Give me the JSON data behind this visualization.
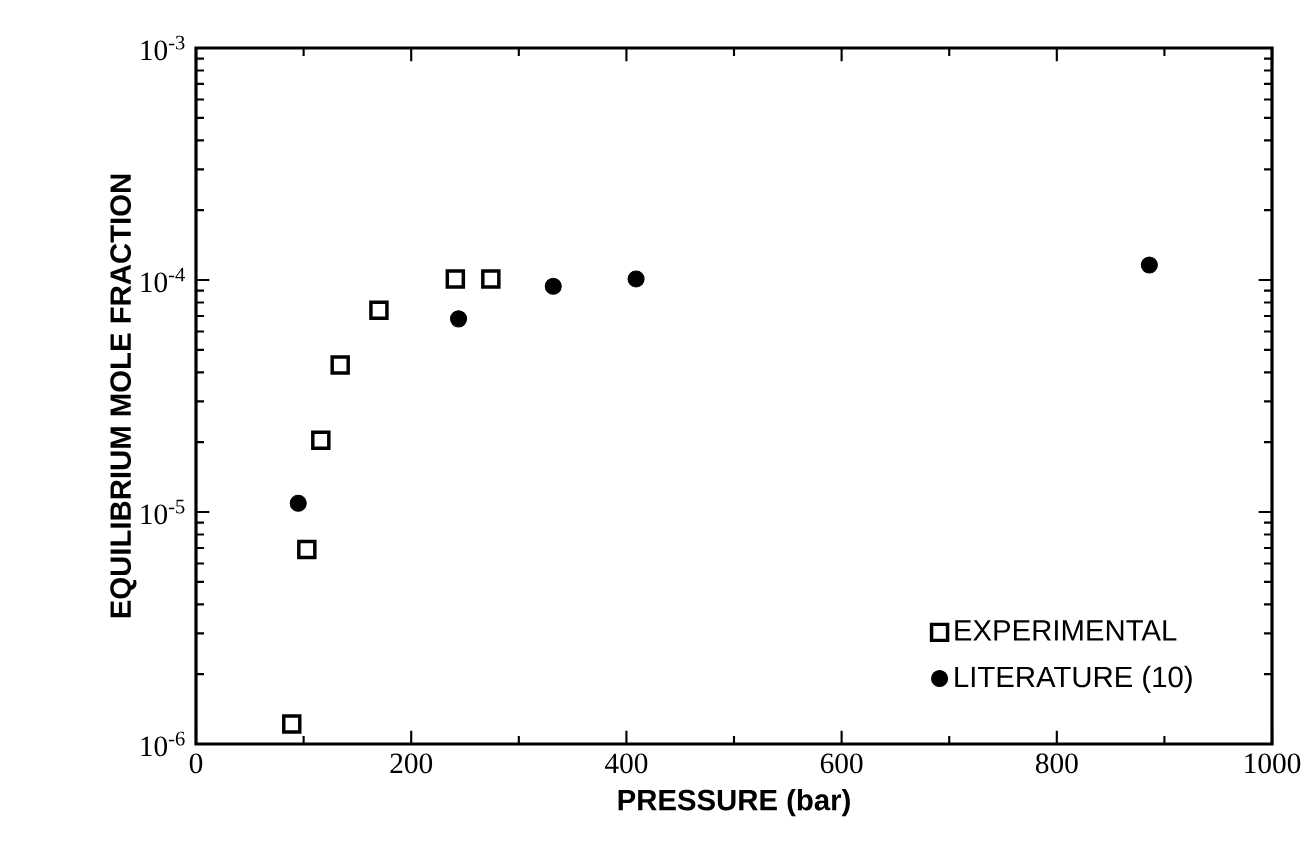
{
  "chart_data": {
    "type": "scatter",
    "xlabel": "PRESSURE  (bar)",
    "ylabel": "EQUILIBRIUM  MOLE  FRACTION",
    "log": "y",
    "xlim": [
      0,
      1000
    ],
    "xticks": [
      0,
      200,
      400,
      600,
      800,
      1000
    ],
    "ylim": [
      1e-06,
      0.001
    ],
    "yticks": [
      {
        "value": 1e-06,
        "label": "10$^{-6}$"
      },
      {
        "value": 1e-05,
        "label": "10$^{-5}$"
      },
      {
        "value": 0.0001,
        "label": "10$^{-4}$"
      },
      {
        "value": 0.001,
        "label": "10$^{-3}$"
      }
    ],
    "legend": "bottom right",
    "grid": false,
    "series": [
      {
        "name": "EXPERIMENTAL",
        "color": "#000000",
        "marker": "square",
        "x": [
          89,
          103,
          116,
          134,
          170,
          241,
          274
        ],
        "values": [
          1.22e-06,
          6.9e-06,
          2.04e-05,
          4.3e-05,
          7.4e-05,
          0.000101,
          0.000101
        ]
      },
      {
        "name": "LITERATURE (10)",
        "color": "#000000",
        "marker": "circle",
        "x": [
          95,
          244,
          332,
          409,
          886
        ],
        "values": [
          1.09e-05,
          6.8e-05,
          9.4e-05,
          0.000101,
          0.000116
        ]
      }
    ]
  }
}
